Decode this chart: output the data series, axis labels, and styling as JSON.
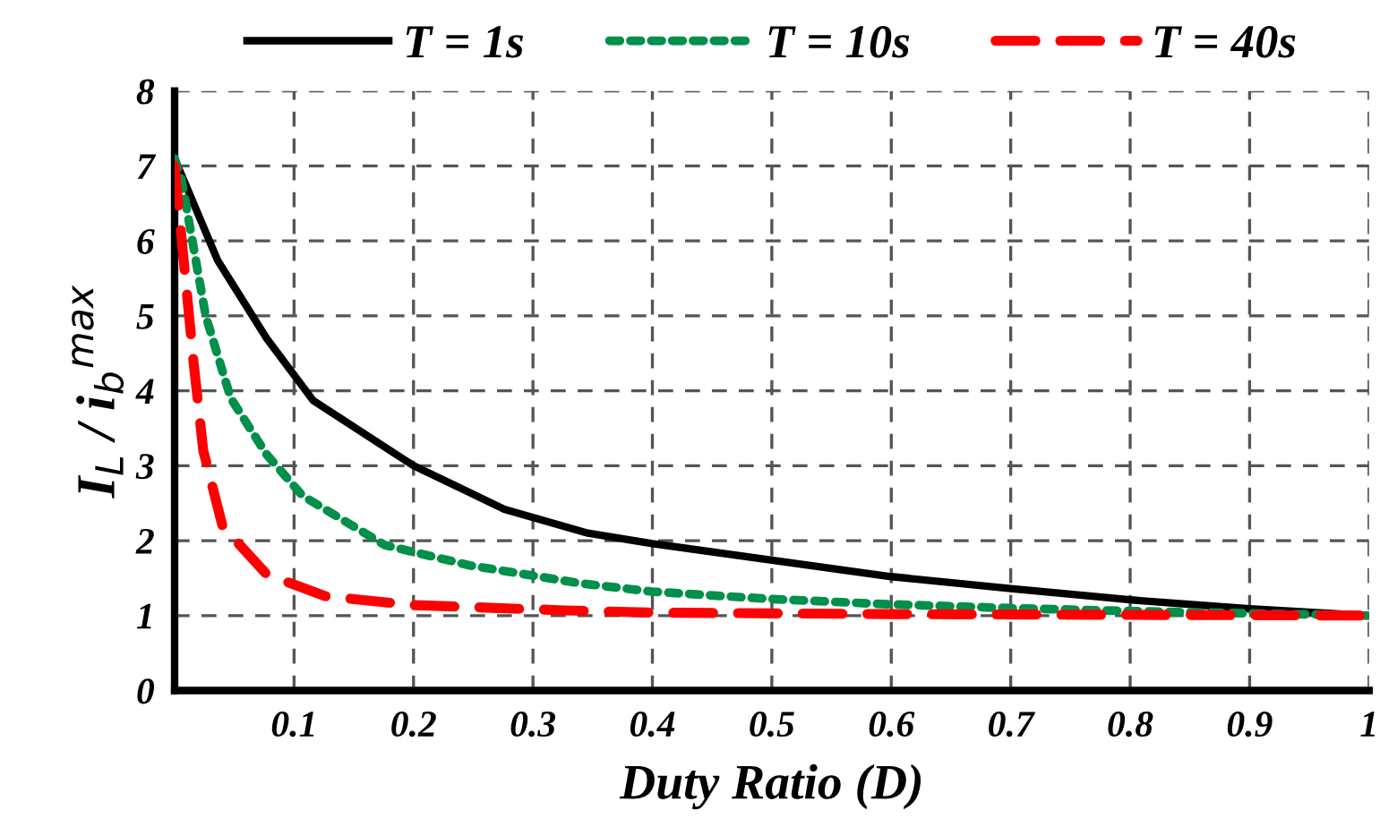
{
  "chart_data": {
    "type": "line",
    "xlabel": "Duty Ratio (D)",
    "ylabel": "I$_{L}$ / i$_{b}$$^{max}$",
    "xlim": [
      0,
      1
    ],
    "ylim": [
      0,
      8
    ],
    "xticks": [
      {
        "value": 0,
        "label": null
      },
      0.1,
      0.2,
      0.3,
      0.4,
      0.5,
      0.6,
      0.7,
      0.8,
      0.9,
      1
    ],
    "yticks": [
      0,
      1,
      2,
      3,
      4,
      5,
      6,
      7,
      8
    ],
    "grid": true,
    "legend": "top",
    "marker": "none",
    "series": [
      {
        "name": "T = 1s",
        "color": "#000000",
        "line_style": "solid",
        "x": [
          0,
          0.036,
          0.077,
          0.116,
          0.2,
          0.276,
          0.346,
          0.4,
          0.5,
          0.6,
          0.7,
          0.8,
          0.9,
          1
        ],
        "values": [
          7.1,
          5.74,
          4.7,
          3.87,
          3.0,
          2.42,
          2.1,
          1.96,
          1.74,
          1.52,
          1.36,
          1.21,
          1.09,
          1.0
        ]
      },
      {
        "name": "T = 10s",
        "color": "#00904a",
        "line_style": "dotted",
        "x": [
          0,
          0.006,
          0.026,
          0.047,
          0.077,
          0.107,
          0.176,
          0.247,
          0.34,
          0.4,
          0.5,
          0.6,
          0.7,
          0.8,
          0.9,
          1
        ],
        "values": [
          7.1,
          6.8,
          5.0,
          3.9,
          3.15,
          2.6,
          1.94,
          1.67,
          1.43,
          1.32,
          1.22,
          1.15,
          1.1,
          1.06,
          1.03,
          1.0
        ]
      },
      {
        "name": "T = 40s",
        "color": "#ff0000",
        "line_style": "dashed",
        "x": [
          0,
          0.006,
          0.016,
          0.024,
          0.04,
          0.077,
          0.126,
          0.2,
          0.326,
          0.4,
          0.6,
          0.8,
          1
        ],
        "values": [
          7.0,
          6.0,
          4.36,
          3.2,
          2.2,
          1.55,
          1.26,
          1.14,
          1.07,
          1.04,
          1.02,
          1.01,
          1.0
        ]
      }
    ]
  }
}
